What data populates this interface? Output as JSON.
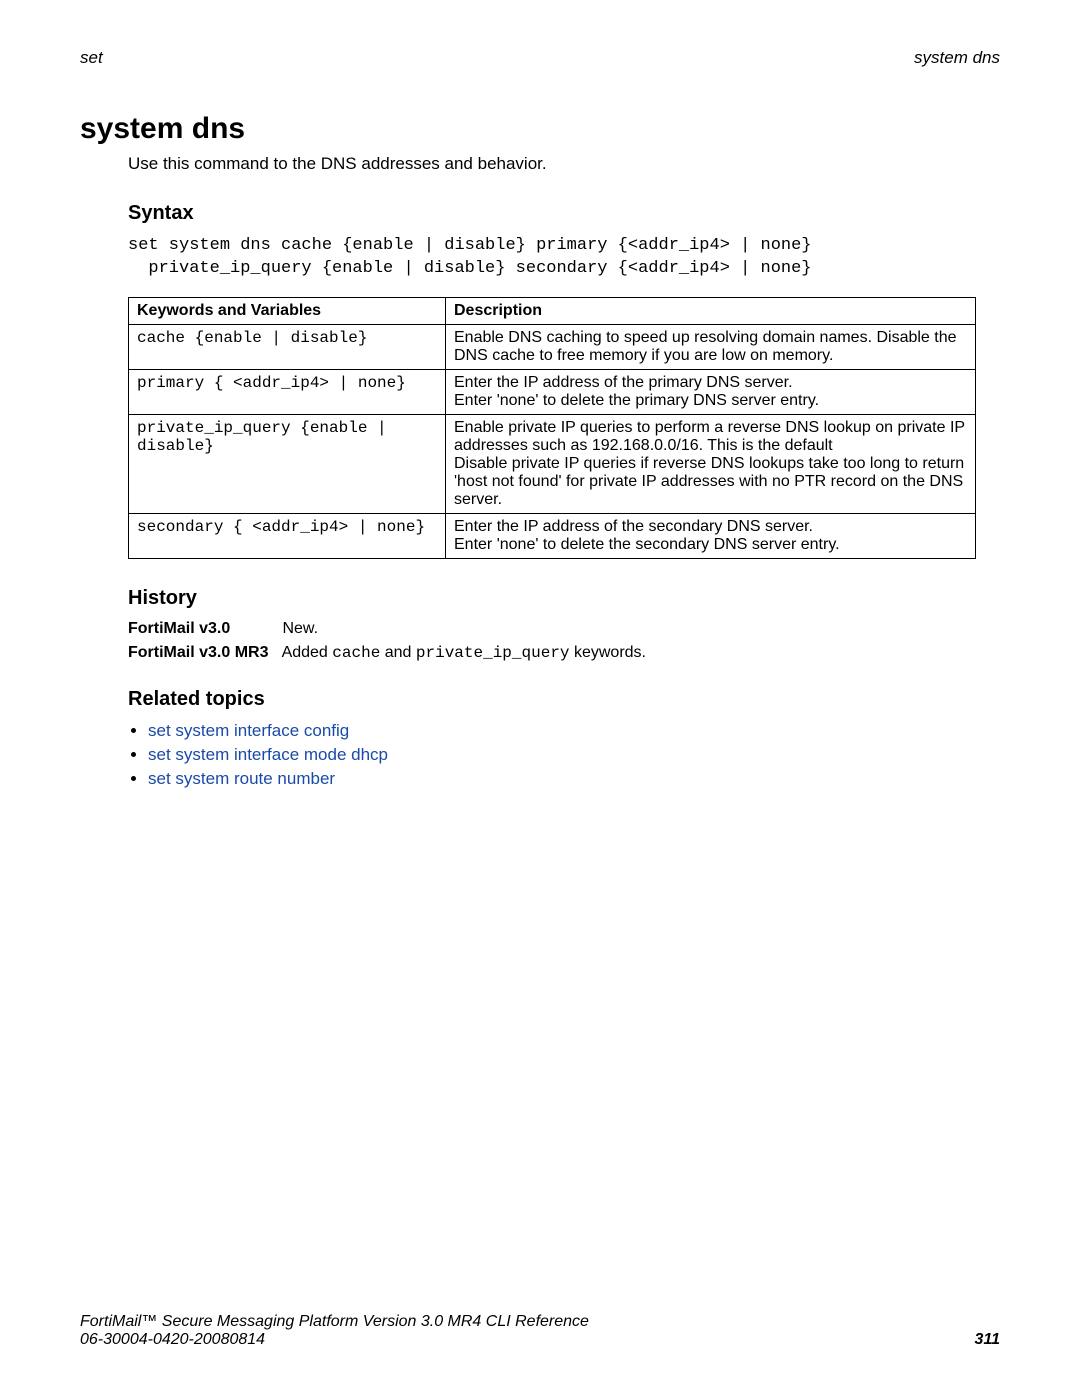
{
  "header": {
    "left": "set",
    "right": "system dns"
  },
  "title": "system dns",
  "intro": "Use this command to the DNS addresses and behavior.",
  "syntax": {
    "heading": "Syntax",
    "code": "set system dns cache {enable | disable} primary {<addr_ip4> | none}\n  private_ip_query {enable | disable} secondary {<addr_ip4> | none}"
  },
  "table": {
    "headers": {
      "col1": "Keywords and Variables",
      "col2": "Description"
    },
    "rows": [
      {
        "kw": "cache {enable | disable}",
        "desc": "Enable DNS caching to speed up resolving domain names. Disable the DNS cache to free memory if you are low on memory."
      },
      {
        "kw": "primary { <addr_ip4> | none}",
        "desc": "Enter the IP address of the primary DNS server.\nEnter 'none' to delete the primary DNS server entry."
      },
      {
        "kw": "private_ip_query {enable | disable}",
        "desc": "Enable private IP queries to perform a reverse DNS lookup on private IP addresses such as 192.168.0.0/16. This is the default\nDisable private IP queries if reverse DNS lookups take too long to return 'host not found' for private IP addresses with no PTR record on the DNS server."
      },
      {
        "kw": "secondary { <addr_ip4> | none}",
        "desc": "Enter the IP address of the secondary DNS server.\nEnter 'none' to delete the secondary DNS server entry."
      }
    ]
  },
  "history": {
    "heading": "History",
    "rows": [
      {
        "ver": "FortiMail v3.0",
        "note_plain": "New.",
        "note_prefix": "",
        "note_code1": "",
        "note_mid": "",
        "note_code2": "",
        "note_suffix": ""
      },
      {
        "ver": "FortiMail v3.0 MR3",
        "note_prefix": "Added ",
        "note_code1": "cache",
        "note_mid": " and ",
        "note_code2": "private_ip_query",
        "note_suffix": " keywords.",
        "note_plain": ""
      }
    ]
  },
  "related": {
    "heading": "Related topics",
    "links": [
      "set system interface config",
      "set system interface mode dhcp",
      "set system route number"
    ]
  },
  "footer": {
    "line1": "FortiMail™ Secure Messaging Platform Version 3.0 MR4 CLI Reference",
    "line2": "06-30004-0420-20080814",
    "page": "311"
  }
}
